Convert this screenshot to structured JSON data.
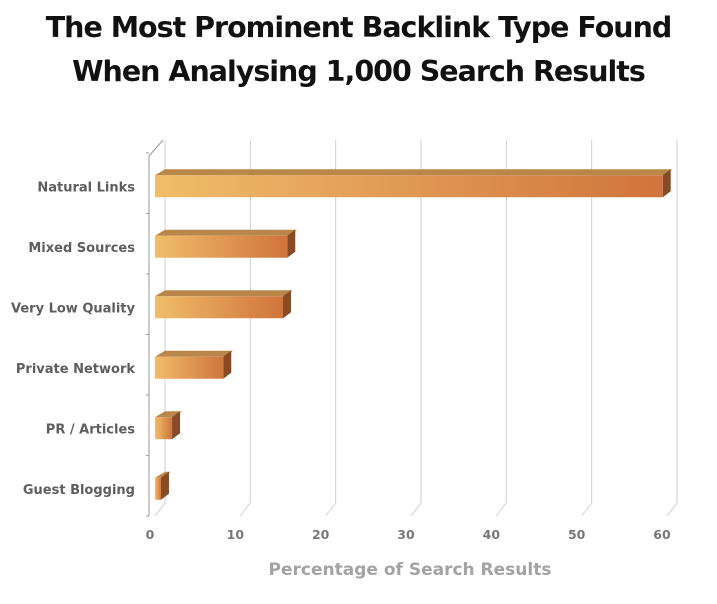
{
  "chart_data": {
    "type": "bar",
    "orientation": "horizontal",
    "style": "3d",
    "title_lines": [
      "The Most Prominent Backlink Type Found",
      "When Analysing 1,000 Search Results"
    ],
    "xlabel": "Percentage of Search Results",
    "ylabel": "",
    "categories": [
      "Natural Links",
      "Mixed Sources",
      "Very Low Quality",
      "Private Network",
      "PR / Articles",
      "Guest Blogging"
    ],
    "values": [
      59.5,
      15.5,
      15,
      8,
      2,
      0.7
    ],
    "xlim": [
      0,
      60
    ],
    "xticks": [
      0,
      10,
      20,
      30,
      40,
      50,
      60
    ],
    "grid": true,
    "colors": {
      "bar_light": "#f0bd6a",
      "bar_dark": "#d0743c",
      "bar_top": "#b9874a",
      "bar_side": "#8a4a22",
      "grid": "#cfcfcf"
    }
  }
}
